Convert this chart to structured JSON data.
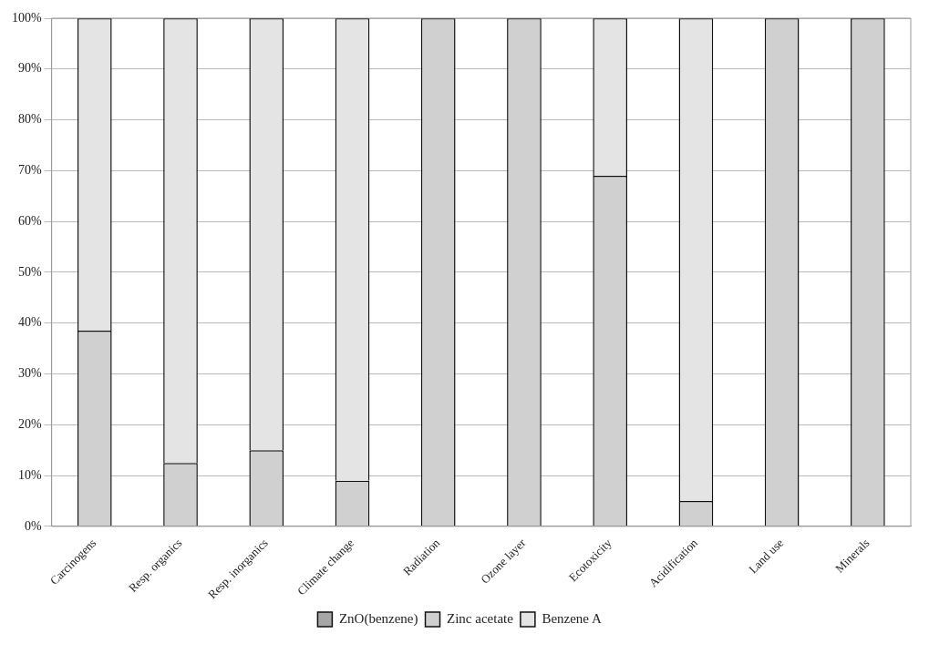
{
  "chart_data": {
    "type": "bar",
    "stacked": true,
    "categories": [
      "Carcinogens",
      "Resp. organics",
      "Resp. inorganics",
      "Climate change",
      "Radiation",
      "Ozone layer",
      "Ecotoxicity",
      "Acidification",
      "Land use",
      "Minerals"
    ],
    "series": [
      {
        "name": "ZnO(benzene)",
        "color": "#a6a6a6",
        "values": [
          0,
          0,
          0,
          0,
          0,
          0,
          0,
          0,
          0,
          0
        ]
      },
      {
        "name": "Zinc acetate",
        "color": "#d0d0d0",
        "values": [
          38.5,
          12.5,
          15,
          9,
          100,
          100,
          69,
          5,
          100,
          100
        ]
      },
      {
        "name": "Benzene A",
        "color": "#e4e4e4",
        "values": [
          61.5,
          87.5,
          85,
          91,
          0,
          0,
          31,
          95,
          0,
          0
        ]
      }
    ],
    "ylim": [
      0,
      100
    ],
    "yticks": [
      {
        "value": 0,
        "label": "0%"
      },
      {
        "value": 10,
        "label": "10%"
      },
      {
        "value": 20,
        "label": "20%"
      },
      {
        "value": 30,
        "label": "30%"
      },
      {
        "value": 40,
        "label": "40%"
      },
      {
        "value": 50,
        "label": "50%"
      },
      {
        "value": 60,
        "label": "60%"
      },
      {
        "value": 70,
        "label": "70%"
      },
      {
        "value": 80,
        "label": "80%"
      },
      {
        "value": 90,
        "label": "90%"
      },
      {
        "value": 100,
        "label": "100%"
      }
    ],
    "grid": "y",
    "legend": "bottom"
  }
}
